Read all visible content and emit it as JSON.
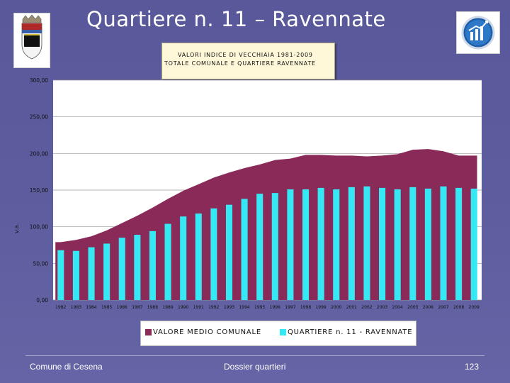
{
  "slide": {
    "title": "Quartiere n. 11 – Ravennate",
    "footer_left": "Comune di Cesena",
    "footer_center": "Dossier quartieri",
    "footer_right": "123"
  },
  "chart_data": {
    "type": "bar",
    "title_lines": [
      "VALORI INDICE DI VECCHIAIA 1981-2009",
      "TOTALE COMUNALE E QUARTIERE RAVENNATE"
    ],
    "ylabel": "v.a.",
    "ylim": [
      0,
      300
    ],
    "ytick_labels": [
      "0,00",
      "50,00",
      "100,00",
      "150,00",
      "200,00",
      "250,00",
      "300,00"
    ],
    "categories": [
      "1982",
      "1983",
      "1984",
      "1985",
      "1986",
      "1987",
      "1988",
      "1989",
      "1990",
      "1991",
      "1992",
      "1993",
      "1994",
      "1995",
      "1996",
      "1997",
      "1998",
      "1999",
      "2000",
      "2001",
      "2002",
      "2003",
      "2004",
      "2005",
      "2006",
      "2007",
      "2008",
      "2009"
    ],
    "grid": true,
    "legend_position": "bottom",
    "series": [
      {
        "name": "VALORE MEDIO COMUNALE",
        "kind": "area",
        "color": "#8a2a58",
        "values": [
          79,
          82,
          87,
          95,
          105,
          115,
          126,
          138,
          149,
          158,
          167,
          174,
          180,
          185,
          191,
          193,
          198,
          198,
          197,
          197,
          196,
          197,
          199,
          205,
          206,
          203,
          197,
          197
        ]
      },
      {
        "name": "QUARTIERE n. 11 - RAVENNATE",
        "kind": "bar",
        "color": "#36e8f4",
        "values": [
          68,
          67,
          72,
          77,
          85,
          89,
          94,
          104,
          114,
          118,
          125,
          130,
          138,
          145,
          146,
          151,
          151,
          153,
          151,
          154,
          155,
          153,
          151,
          154,
          152,
          155,
          153,
          152
        ]
      }
    ]
  }
}
